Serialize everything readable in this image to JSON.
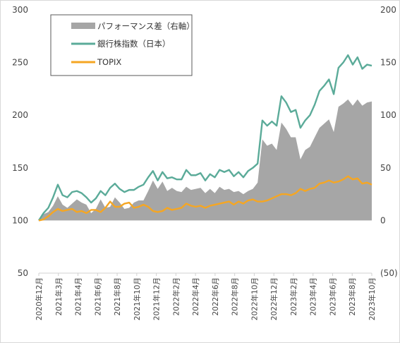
{
  "chart_data": {
    "type": "line",
    "title": "",
    "legend": {
      "placement": "top-left",
      "entries": [
        {
          "label": "パフォーマンス差（右軸）",
          "kind": "area",
          "color": "#a6a6a6"
        },
        {
          "label": "銀行株指数（日本）",
          "kind": "line",
          "color": "#5bab99"
        },
        {
          "label": "TOPIX",
          "kind": "line",
          "color": "#f5a623"
        }
      ]
    },
    "y_left": {
      "min": 50,
      "max": 300,
      "ticks": [
        50,
        100,
        150,
        200,
        250,
        300
      ],
      "tick_labels": [
        "50",
        "100",
        "150",
        "200",
        "250",
        "300"
      ]
    },
    "y_right": {
      "min": -50,
      "max": 200,
      "ticks": [
        -50,
        0,
        50,
        100,
        150,
        200
      ],
      "tick_labels": [
        "(50)",
        "0",
        "50",
        "100",
        "150",
        "200"
      ],
      "negative_color": "#c00000"
    },
    "x_tick_labels": [
      "2020年12月",
      "2021年3月",
      "2021年4月",
      "2021年6月",
      "2021年8月",
      "2021年10月",
      "2021年12月",
      "2022年2月",
      "2022年4月",
      "2022年6月",
      "2022年8月",
      "2022年10月",
      "2022年12月",
      "2023年2月",
      "2023年4月",
      "2023年6月",
      "2023年8月",
      "2023年10月"
    ],
    "grid": false,
    "x": [
      0,
      0.5,
      1,
      1.5,
      2,
      2.5,
      3,
      3.5,
      4,
      4.5,
      5,
      5.5,
      6,
      6.5,
      7,
      7.5,
      8,
      8.5,
      9,
      9.5,
      10,
      10.5,
      11,
      11.5,
      12,
      12.5,
      13,
      13.5,
      14,
      14.5,
      15,
      15.5,
      16,
      16.5,
      17,
      17.5,
      18,
      18.5,
      19,
      19.5,
      20,
      20.5,
      21,
      21.5,
      22,
      22.5,
      23,
      23.5,
      24,
      24.5,
      25,
      25.5,
      26,
      26.5,
      27,
      27.5,
      28,
      28.5,
      29,
      29.5,
      30,
      30.5,
      31,
      31.5,
      32,
      32.5,
      33,
      33.5,
      34,
      34.5,
      35
    ],
    "series": [
      {
        "name": "銀行株指数（日本）",
        "axis": "left",
        "values": [
          100,
          107,
          112,
          122,
          134,
          124,
          122,
          127,
          128,
          126,
          122,
          117,
          121,
          128,
          124,
          131,
          135,
          130,
          127,
          129,
          129,
          132,
          134,
          141,
          147,
          138,
          146,
          140,
          141,
          139,
          139,
          148,
          143,
          143,
          145,
          138,
          144,
          141,
          148,
          146,
          148,
          142,
          146,
          141,
          147,
          150,
          154,
          195,
          190,
          194,
          190,
          218,
          212,
          203,
          205,
          188,
          195,
          200,
          210,
          223,
          228,
          234,
          220,
          245,
          250,
          257,
          248,
          255,
          244,
          248,
          247
        ]
      },
      {
        "name": "TOPIX",
        "axis": "left",
        "values": [
          100,
          101,
          104,
          108,
          111,
          109,
          110,
          111,
          108,
          109,
          107,
          110,
          110,
          108,
          112,
          118,
          113,
          113,
          116,
          117,
          112,
          113,
          115,
          113,
          109,
          108,
          109,
          112,
          110,
          111,
          112,
          116,
          114,
          113,
          114,
          112,
          114,
          115,
          116,
          117,
          118,
          115,
          118,
          116,
          119,
          120,
          118,
          118,
          119,
          121,
          123,
          125,
          125,
          124,
          126,
          130,
          128,
          130,
          131,
          135,
          136,
          138,
          136,
          137,
          139,
          142,
          139,
          140,
          135,
          136,
          134
        ]
      },
      {
        "name": "パフォーマンス差（右軸）",
        "axis": "right",
        "type": "area",
        "values": [
          0,
          6,
          8,
          14,
          23,
          15,
          12,
          16,
          20,
          17,
          15,
          7,
          11,
          20,
          12,
          13,
          22,
          17,
          11,
          12,
          17,
          19,
          19,
          28,
          38,
          30,
          37,
          28,
          31,
          28,
          27,
          32,
          29,
          30,
          31,
          26,
          30,
          26,
          32,
          29,
          30,
          27,
          28,
          25,
          28,
          30,
          36,
          77,
          71,
          73,
          67,
          93,
          87,
          79,
          79,
          58,
          67,
          70,
          79,
          88,
          92,
          96,
          84,
          108,
          111,
          115,
          109,
          115,
          109,
          112,
          113
        ]
      }
    ]
  }
}
